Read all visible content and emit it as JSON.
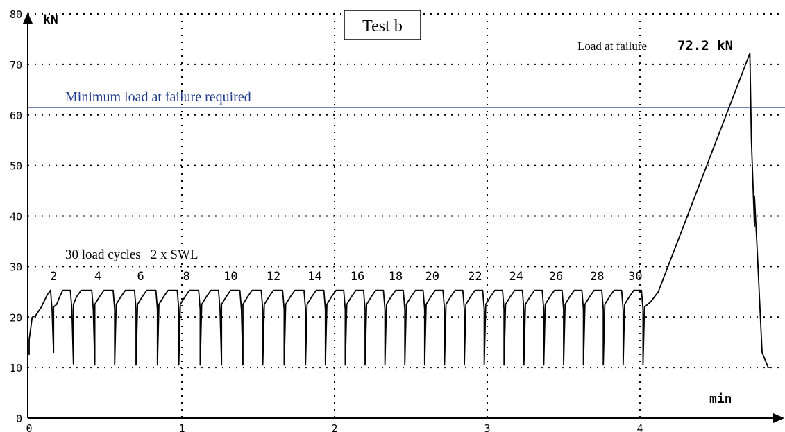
{
  "chart_data": {
    "type": "line",
    "title": "Test b",
    "ylabel": "kN",
    "xlabel": "min",
    "xlim": [
      0,
      4.9
    ],
    "ylim": [
      0,
      80
    ],
    "x_ticks": [
      0,
      1,
      2,
      3,
      4
    ],
    "y_ticks": [
      0,
      10,
      20,
      30,
      40,
      50,
      60,
      70,
      80
    ],
    "grid": true,
    "cycles_annotation": "30 load cycles   2 x SWL",
    "cycle_labels": [
      {
        "label": "2",
        "x": 0.16
      },
      {
        "label": "4",
        "x": 0.45
      },
      {
        "label": "6",
        "x": 0.73
      },
      {
        "label": "8",
        "x": 1.03
      },
      {
        "label": "10",
        "x": 1.32
      },
      {
        "label": "12",
        "x": 1.6
      },
      {
        "label": "14",
        "x": 1.87
      },
      {
        "label": "16",
        "x": 2.15
      },
      {
        "label": "18",
        "x": 2.4
      },
      {
        "label": "20",
        "x": 2.64
      },
      {
        "label": "22",
        "x": 2.92
      },
      {
        "label": "24",
        "x": 3.19
      },
      {
        "label": "26",
        "x": 3.45
      },
      {
        "label": "28",
        "x": 3.72
      },
      {
        "label": "30",
        "x": 3.97
      }
    ],
    "reference_line": {
      "label": "Minimum load at failure required",
      "y": 61.5,
      "color": "#1f3a8a"
    },
    "failure_annotation": {
      "prefix": "Load at failure",
      "value": "72.2 kN",
      "x": 4.72,
      "y": 72.2
    },
    "cycle_min": 10.5,
    "cycle_max": 25.3,
    "series": [
      {
        "color": "#000000",
        "x": [
          0.0,
          0.0,
          0.02,
          0.04,
          0.08,
          0.12,
          0.14,
          0.15,
          0.16,
          0.16,
          0.18,
          0.2,
          0.22,
          0.27,
          0.28,
          0.29,
          0.29,
          0.31,
          0.34,
          0.41,
          0.42,
          0.43,
          0.43,
          0.46,
          0.49,
          0.55,
          0.56,
          0.56,
          0.57,
          0.6,
          0.63,
          0.69,
          0.7,
          0.7,
          0.71,
          0.74,
          0.77,
          0.83,
          0.84,
          0.84,
          0.85,
          0.88,
          0.91,
          0.97,
          0.98,
          0.98,
          0.99,
          1.02,
          1.05,
          1.11,
          1.12,
          1.12,
          1.13,
          1.16,
          1.19,
          1.24,
          1.25,
          1.26,
          1.26,
          1.29,
          1.32,
          1.38,
          1.39,
          1.4,
          1.4,
          1.43,
          1.46,
          1.52,
          1.53,
          1.53,
          1.54,
          1.57,
          1.6,
          1.66,
          1.67,
          1.67,
          1.68,
          1.71,
          1.74,
          1.8,
          1.81,
          1.81,
          1.82,
          1.85,
          1.88,
          1.93,
          1.94,
          1.94,
          1.95,
          1.98,
          2.01,
          2.06,
          2.07,
          2.07,
          2.08,
          2.11,
          2.14,
          2.19,
          2.2,
          2.2,
          2.21,
          2.24,
          2.27,
          2.32,
          2.33,
          2.33,
          2.34,
          2.37,
          2.4,
          2.45,
          2.46,
          2.46,
          2.47,
          2.5,
          2.53,
          2.58,
          2.59,
          2.59,
          2.6,
          2.63,
          2.66,
          2.71,
          2.72,
          2.72,
          2.73,
          2.76,
          2.79,
          2.84,
          2.85,
          2.85,
          2.86,
          2.89,
          2.92,
          2.97,
          2.98,
          2.98,
          2.99,
          3.02,
          3.05,
          3.1,
          3.11,
          3.11,
          3.12,
          3.15,
          3.18,
          3.23,
          3.24,
          3.24,
          3.25,
          3.28,
          3.31,
          3.36,
          3.37,
          3.37,
          3.38,
          3.41,
          3.44,
          3.49,
          3.5,
          3.5,
          3.51,
          3.54,
          3.57,
          3.62,
          3.63,
          3.63,
          3.64,
          3.67,
          3.7,
          3.75,
          3.76,
          3.76,
          3.77,
          3.8,
          3.83,
          3.88,
          3.89,
          3.89,
          3.9,
          3.93,
          3.96,
          4.01,
          4.02,
          4.02,
          4.03,
          4.07,
          4.12,
          4.72,
          4.73,
          4.75,
          4.75,
          4.77,
          4.8,
          4.84,
          4.86
        ],
        "y": [
          12.5,
          15.5,
          20.0,
          20.2,
          22.0,
          24.5,
          25.3,
          21.5,
          13.0,
          22.0,
          22.5,
          24.0,
          25.3,
          25.3,
          21.5,
          10.7,
          22.5,
          24.0,
          25.3,
          25.3,
          21.5,
          10.5,
          22.5,
          24.0,
          25.3,
          25.3,
          21.5,
          10.5,
          22.5,
          24.0,
          25.3,
          25.3,
          21.5,
          10.5,
          22.5,
          24.0,
          25.3,
          25.3,
          21.5,
          10.5,
          22.5,
          24.0,
          25.3,
          25.3,
          21.5,
          10.5,
          22.5,
          24.0,
          25.3,
          25.3,
          21.5,
          10.5,
          22.5,
          24.0,
          25.3,
          25.3,
          21.5,
          10.5,
          22.5,
          24.0,
          25.3,
          25.3,
          21.5,
          10.5,
          22.5,
          24.0,
          25.3,
          25.3,
          21.5,
          10.5,
          22.5,
          24.0,
          25.3,
          25.3,
          21.5,
          10.5,
          22.5,
          24.0,
          25.3,
          25.3,
          21.5,
          10.5,
          22.5,
          24.0,
          25.3,
          25.3,
          21.5,
          10.5,
          22.5,
          24.0,
          25.3,
          25.3,
          21.5,
          10.5,
          22.5,
          24.0,
          25.3,
          25.3,
          21.5,
          10.5,
          22.5,
          24.0,
          25.3,
          25.3,
          21.5,
          10.5,
          22.5,
          24.0,
          25.3,
          25.3,
          21.5,
          10.5,
          22.5,
          24.0,
          25.3,
          25.3,
          21.5,
          10.5,
          22.5,
          24.0,
          25.3,
          25.3,
          21.5,
          10.5,
          22.5,
          24.0,
          25.3,
          25.3,
          21.5,
          10.5,
          22.5,
          24.0,
          25.3,
          25.3,
          21.5,
          10.5,
          22.5,
          24.0,
          25.3,
          25.3,
          21.5,
          10.5,
          22.5,
          24.0,
          25.3,
          25.3,
          21.5,
          10.5,
          22.5,
          24.0,
          25.3,
          25.3,
          21.5,
          10.5,
          22.5,
          24.0,
          25.3,
          25.3,
          21.5,
          10.5,
          22.5,
          24.0,
          25.3,
          25.3,
          21.5,
          10.5,
          22.5,
          24.0,
          25.3,
          25.3,
          21.5,
          10.5,
          22.5,
          24.0,
          25.3,
          25.3,
          21.5,
          10.5,
          22.5,
          24.0,
          25.3,
          25.3,
          21.5,
          10.5,
          22.0,
          23.0,
          25.0,
          72.2,
          55.0,
          38.0,
          44.0,
          32.0,
          13.0,
          10.0,
          10.0
        ]
      }
    ]
  }
}
